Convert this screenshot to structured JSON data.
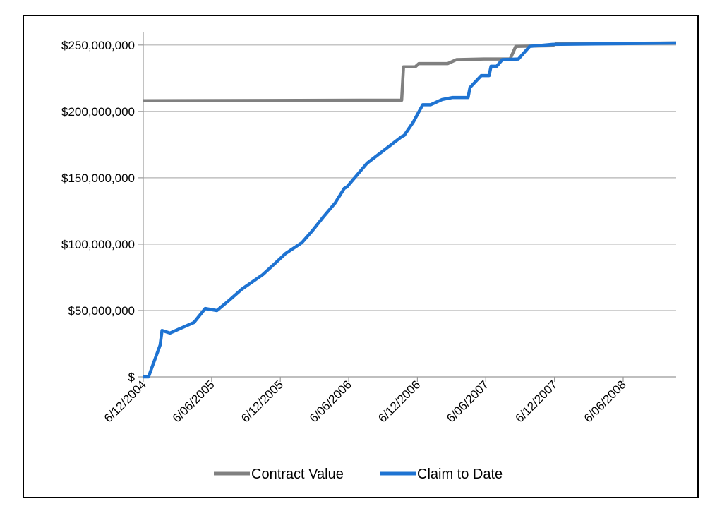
{
  "chart_data": {
    "type": "line",
    "title": "",
    "xlabel": "",
    "ylabel": "",
    "ylim": [
      0,
      260000000
    ],
    "xlim": [
      "2004-12-06",
      "2008-10-25"
    ],
    "y_ticks": [
      {
        "value": 0,
        "label": "$"
      },
      {
        "value": 50000000,
        "label": "$50,000,000"
      },
      {
        "value": 100000000,
        "label": "$100,000,000"
      },
      {
        "value": 150000000,
        "label": "$150,000,000"
      },
      {
        "value": 200000000,
        "label": "$200,000,000"
      },
      {
        "value": 250000000,
        "label": "$250,000,000"
      }
    ],
    "x_ticks": [
      {
        "date": "2004-12-06",
        "label": "6/12/2004"
      },
      {
        "date": "2005-06-06",
        "label": "6/06/2005"
      },
      {
        "date": "2005-12-06",
        "label": "6/12/2005"
      },
      {
        "date": "2006-06-06",
        "label": "6/06/2006"
      },
      {
        "date": "2006-12-06",
        "label": "6/12/2006"
      },
      {
        "date": "2007-06-06",
        "label": "6/06/2007"
      },
      {
        "date": "2007-12-06",
        "label": "6/12/2007"
      },
      {
        "date": "2008-06-06",
        "label": "6/06/2008"
      }
    ],
    "grid": "horizontal",
    "legend": "bottom",
    "series": [
      {
        "name": "Contract Value",
        "color": "#808080",
        "points": [
          [
            "2004-12-06",
            208000000
          ],
          [
            "2006-10-25",
            208500000
          ],
          [
            "2006-10-30",
            233500000
          ],
          [
            "2006-11-30",
            233500000
          ],
          [
            "2006-12-10",
            236000000
          ],
          [
            "2007-02-25",
            236000000
          ],
          [
            "2007-03-20",
            239000000
          ],
          [
            "2007-06-01",
            239500000
          ],
          [
            "2007-08-10",
            239500000
          ],
          [
            "2007-08-25",
            249000000
          ],
          [
            "2007-12-01",
            249500000
          ],
          [
            "2007-12-10",
            251000000
          ],
          [
            "2008-10-25",
            251500000
          ]
        ]
      },
      {
        "name": "Claim to Date",
        "color": "#1e73d2",
        "points": [
          [
            "2004-12-06",
            0
          ],
          [
            "2004-12-20",
            0
          ],
          [
            "2005-01-20",
            24000000
          ],
          [
            "2005-01-25",
            35000000
          ],
          [
            "2005-02-15",
            33000000
          ],
          [
            "2005-04-20",
            41000000
          ],
          [
            "2005-05-20",
            51500000
          ],
          [
            "2005-06-20",
            50000000
          ],
          [
            "2005-07-20",
            57000000
          ],
          [
            "2005-08-25",
            66000000
          ],
          [
            "2005-10-20",
            77000000
          ],
          [
            "2005-11-20",
            85000000
          ],
          [
            "2005-12-20",
            93000000
          ],
          [
            "2006-02-01",
            101000000
          ],
          [
            "2006-03-01",
            110000000
          ],
          [
            "2006-04-01",
            121000000
          ],
          [
            "2006-05-01",
            131000000
          ],
          [
            "2006-05-25",
            142000000
          ],
          [
            "2006-06-01",
            143000000
          ],
          [
            "2006-07-25",
            161000000
          ],
          [
            "2006-10-25",
            181000000
          ],
          [
            "2006-11-01",
            182000000
          ],
          [
            "2006-11-25",
            192000000
          ],
          [
            "2006-12-20",
            205000000
          ],
          [
            "2007-01-10",
            205000000
          ],
          [
            "2007-02-10",
            209000000
          ],
          [
            "2007-03-10",
            210500000
          ],
          [
            "2007-04-20",
            210500000
          ],
          [
            "2007-04-25",
            218000000
          ],
          [
            "2007-05-25",
            227000000
          ],
          [
            "2007-06-15",
            227000000
          ],
          [
            "2007-06-20",
            234000000
          ],
          [
            "2007-07-05",
            234000000
          ],
          [
            "2007-07-20",
            239000000
          ],
          [
            "2007-09-01",
            239500000
          ],
          [
            "2007-10-01",
            249000000
          ],
          [
            "2007-12-01",
            250500000
          ],
          [
            "2008-06-01",
            251000000
          ],
          [
            "2008-10-25",
            251500000
          ]
        ]
      }
    ]
  }
}
